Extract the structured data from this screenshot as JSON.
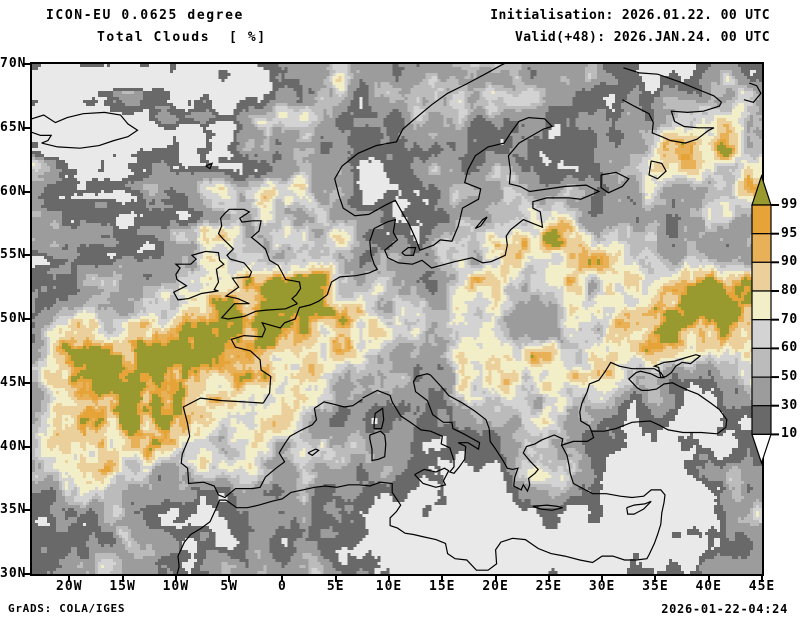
{
  "header": {
    "model_line": "ICON-EU 0.0625 degree",
    "variable_line": "Total Clouds  [ %]",
    "init_line": "Initialisation: 2026.01.22. 00 UTC",
    "valid_line": "Valid(+48): 2026.JAN.24. 00 UTC"
  },
  "axes": {
    "lat": [
      "70N",
      "65N",
      "60N",
      "55N",
      "50N",
      "45N",
      "40N",
      "35N",
      "30N"
    ],
    "lon": [
      "20W",
      "15W",
      "10W",
      "5W",
      "0",
      "5E",
      "10E",
      "15E",
      "20E",
      "25E",
      "30E",
      "35E",
      "40E",
      "45E"
    ]
  },
  "colorbar": {
    "labels": [
      "99.5",
      "95",
      "90",
      "80",
      "70",
      "60",
      "50",
      "30",
      "10"
    ],
    "above_color": "#98992e",
    "segment_colors": [
      "#e6a338",
      "#e9b157",
      "#ecd09c",
      "#f2eec7",
      "#d3d3d3",
      "#bbbbbb",
      "#9c9c9c",
      "#696969"
    ],
    "below_color": "#fdfdfd"
  },
  "map": {
    "clear_color": "#e9e9e9",
    "coastline_color": "#000000"
  },
  "footer": {
    "left": "GrADS: COLA/IGES",
    "right": "2026-01-22-04:24"
  },
  "chart_data": {
    "type": "heatmap",
    "title": "ICON-EU 0.0625 degree — Total Clouds [%]",
    "initialisation": "2026.01.22. 00 UTC",
    "valid": "Valid(+48): 2026.JAN.24. 00 UTC",
    "lon_range_deg": [
      -23.5,
      45
    ],
    "lat_range_deg": [
      30,
      70
    ],
    "levels_percent": [
      10,
      30,
      50,
      60,
      70,
      80,
      90,
      95,
      99.5
    ],
    "legend_position": "right"
  }
}
